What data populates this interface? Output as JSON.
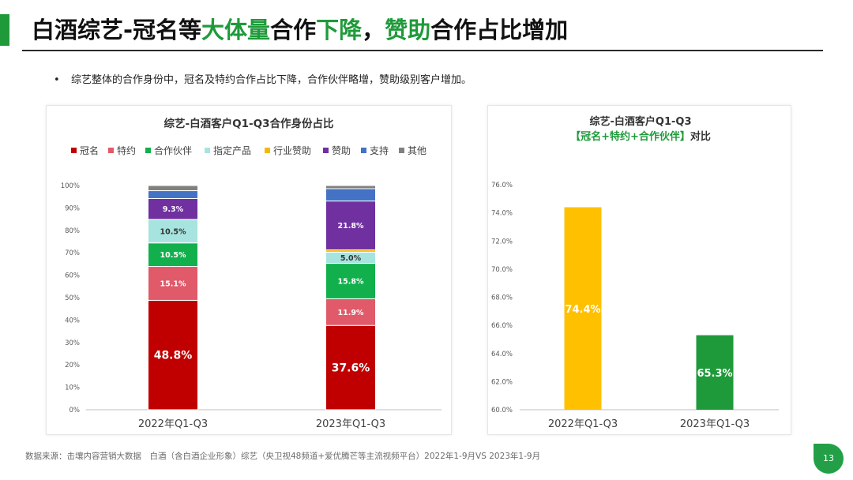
{
  "title": {
    "parts": [
      {
        "text": "白酒综艺-冠名等",
        "highlight": false
      },
      {
        "text": "大体量",
        "highlight": true
      },
      {
        "text": "合作",
        "highlight": false
      },
      {
        "text": "下降",
        "highlight": true
      },
      {
        "text": "，",
        "highlight": false
      },
      {
        "text": "赞助",
        "highlight": true
      },
      {
        "text": "合作占比增加",
        "highlight": false
      }
    ]
  },
  "bullet": {
    "dot": "•",
    "text": "综艺整体的合作身份中，冠名及特约合作占比下降，合作伙伴略增，赞助级别客户增加。"
  },
  "footnote": "数据来源：击壤内容营销大数据　白酒（含白酒企业形象）综艺（央卫视48频道+爱优腾芒等主流视频平台）2022年1-9月VS 2023年1-9月",
  "page_number": "13",
  "colors": {
    "accent": "#1f9a3a",
    "title_green": "#1f9a3a"
  },
  "chart_data": [
    {
      "type": "bar",
      "stacked": true,
      "title": "综艺-白酒客户Q1-Q3合作身份占比",
      "categories": [
        "2022年Q1-Q3",
        "2023年Q1-Q3"
      ],
      "ylim": [
        0,
        100
      ],
      "yticks": [
        "0%",
        "10%",
        "20%",
        "30%",
        "40%",
        "50%",
        "60%",
        "70%",
        "80%",
        "90%",
        "100%"
      ],
      "legend_position": "top",
      "series": [
        {
          "name": "冠名",
          "color": "#c00000",
          "values": [
            48.8,
            37.6
          ],
          "labels": [
            "48.8%",
            "37.6%"
          ],
          "label_color": "#ffffff",
          "label_size": "big"
        },
        {
          "name": "特约",
          "color": "#e05a6a",
          "values": [
            15.1,
            11.9
          ],
          "labels": [
            "15.1%",
            "11.9%"
          ],
          "label_color": "#ffffff"
        },
        {
          "name": "合作伙伴",
          "color": "#12b04c",
          "values": [
            10.5,
            15.8
          ],
          "labels": [
            "10.5%",
            "15.8%"
          ],
          "label_color": "#ffffff"
        },
        {
          "name": "指定产品",
          "color": "#a7e4df",
          "values": [
            10.5,
            5.0
          ],
          "labels": [
            "10.5%",
            "5.0%"
          ],
          "label_color": "#333333"
        },
        {
          "name": "行业赞助",
          "color": "#f5b800",
          "values": [
            0,
            1.0
          ],
          "labels": [
            "",
            ""
          ],
          "label_color": "#333333"
        },
        {
          "name": "赞助",
          "color": "#7030a0",
          "values": [
            9.3,
            21.8
          ],
          "labels": [
            "9.3%",
            "21.8%"
          ],
          "label_color": "#ffffff"
        },
        {
          "name": "支持",
          "color": "#4472c4",
          "values": [
            3.5,
            5.5
          ],
          "labels": [
            "",
            ""
          ],
          "label_color": "#ffffff"
        },
        {
          "name": "其他",
          "color": "#808080",
          "values": [
            2.3,
            1.4
          ],
          "labels": [
            "",
            ""
          ],
          "label_color": "#ffffff"
        }
      ]
    },
    {
      "type": "bar",
      "title": "综艺-白酒客户Q1-Q3",
      "subtitle": "【冠名+特约+合作伙伴】对比",
      "categories": [
        "2022年Q1-Q3",
        "2023年Q1-Q3"
      ],
      "values": [
        74.4,
        65.3
      ],
      "labels": [
        "74.4%",
        "65.3%"
      ],
      "colors": [
        "#ffc000",
        "#1f9a3a"
      ],
      "ylim": [
        60,
        76
      ],
      "yticks": [
        "60.0%",
        "62.0%",
        "64.0%",
        "66.0%",
        "68.0%",
        "70.0%",
        "72.0%",
        "74.0%",
        "76.0%"
      ]
    }
  ]
}
